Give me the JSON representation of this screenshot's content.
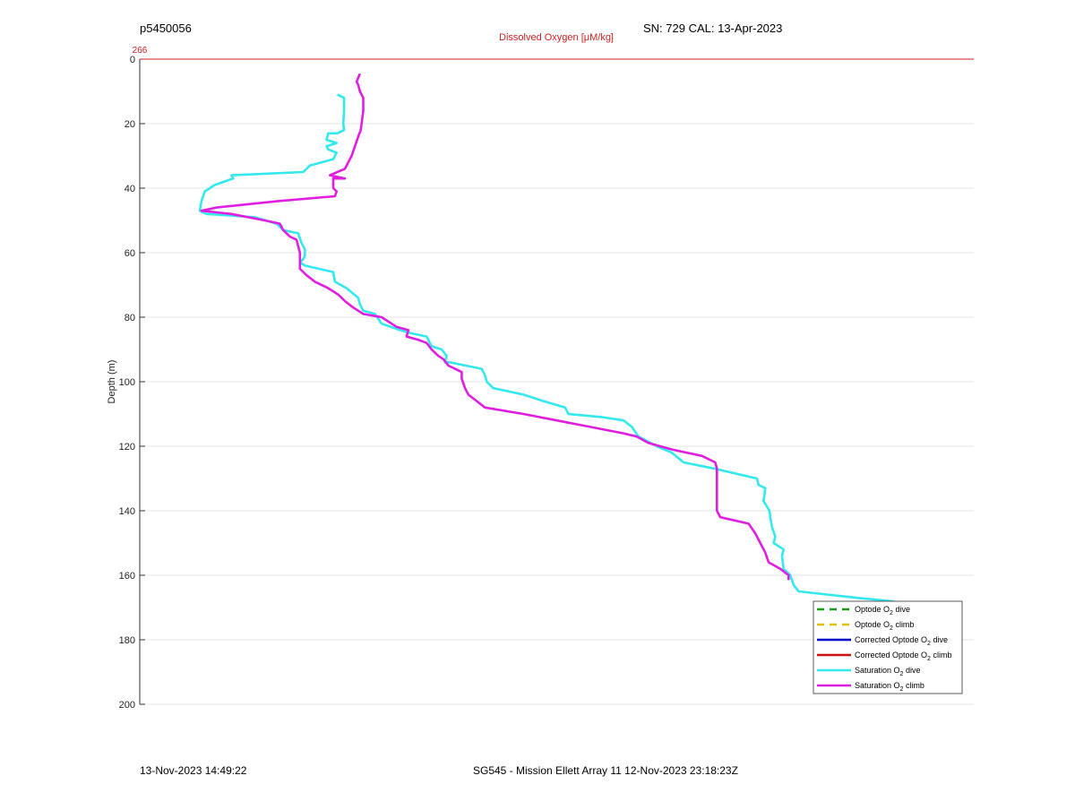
{
  "header": {
    "left": "p5450056",
    "right": "SN: 729  CAL: 13-Apr-2023"
  },
  "footer": {
    "left": "13-Nov-2023 14:49:22",
    "center": "SG545 - Mission Ellett Array 11 12-Nov-2023 23:18:23Z"
  },
  "chart_data": {
    "type": "line",
    "title": "",
    "top_axis_label": "Dissolved Oxygen [μM/kg]",
    "top_axis_ticks": [
      "266"
    ],
    "ylabel": "Depth (m)",
    "ylim": [
      0,
      200
    ],
    "y_reversed": true,
    "yticks": [
      0,
      20,
      40,
      60,
      80,
      100,
      120,
      140,
      160,
      180,
      200
    ],
    "grid": true,
    "legend_position": "bottom-right",
    "legend": [
      {
        "label": "Optode O",
        "sub": "2",
        "suffix": " dive",
        "color": "#1a9a1a",
        "dash": true
      },
      {
        "label": "Optode O",
        "sub": "2",
        "suffix": " climb",
        "color": "#e0c000",
        "dash": true
      },
      {
        "label": "Corrected Optode O",
        "sub": "2",
        "suffix": " dive",
        "color": "#0000cc",
        "dash": false
      },
      {
        "label": "Corrected Optode O",
        "sub": "2",
        "suffix": " climb",
        "color": "#cc1111",
        "dash": false
      },
      {
        "label": "Saturation O",
        "sub": "2",
        "suffix": " dive",
        "color": "#33e8ee",
        "dash": false
      },
      {
        "label": "Saturation O",
        "sub": "2",
        "suffix": " climb",
        "color": "#e01ee0",
        "dash": false
      }
    ],
    "x_note": "Series values are in relative units (0 = left edge, 1 = right edge of the plot area); the x axis carries no numeric tick labels.",
    "series": [
      {
        "name": "Saturation O2 dive",
        "color": "#33e8ee",
        "points": [
          [
            0.237,
            11
          ],
          [
            0.245,
            12
          ],
          [
            0.245,
            16
          ],
          [
            0.244,
            20
          ],
          [
            0.245,
            22
          ],
          [
            0.237,
            23
          ],
          [
            0.226,
            23
          ],
          [
            0.224,
            25
          ],
          [
            0.236,
            26
          ],
          [
            0.224,
            27
          ],
          [
            0.226,
            28
          ],
          [
            0.236,
            29
          ],
          [
            0.232,
            31
          ],
          [
            0.204,
            33
          ],
          [
            0.196,
            35
          ],
          [
            0.11,
            36
          ],
          [
            0.112,
            37
          ],
          [
            0.09,
            39
          ],
          [
            0.078,
            41
          ],
          [
            0.074,
            44
          ],
          [
            0.072,
            47
          ],
          [
            0.08,
            48
          ],
          [
            0.138,
            49
          ],
          [
            0.164,
            51
          ],
          [
            0.172,
            53
          ],
          [
            0.19,
            54
          ],
          [
            0.194,
            57
          ],
          [
            0.198,
            59
          ],
          [
            0.198,
            61
          ],
          [
            0.196,
            62
          ],
          [
            0.192,
            63
          ],
          [
            0.198,
            64
          ],
          [
            0.232,
            66
          ],
          [
            0.234,
            69
          ],
          [
            0.248,
            71
          ],
          [
            0.262,
            74
          ],
          [
            0.264,
            76
          ],
          [
            0.268,
            78
          ],
          [
            0.282,
            79
          ],
          [
            0.29,
            82
          ],
          [
            0.312,
            84
          ],
          [
            0.326,
            85
          ],
          [
            0.344,
            86
          ],
          [
            0.35,
            89
          ],
          [
            0.362,
            90
          ],
          [
            0.368,
            92
          ],
          [
            0.366,
            94
          ],
          [
            0.372,
            94
          ],
          [
            0.41,
            96
          ],
          [
            0.414,
            98
          ],
          [
            0.416,
            100
          ],
          [
            0.424,
            102
          ],
          [
            0.46,
            104
          ],
          [
            0.484,
            106
          ],
          [
            0.51,
            108
          ],
          [
            0.514,
            110
          ],
          [
            0.555,
            111
          ],
          [
            0.58,
            112
          ],
          [
            0.59,
            114
          ],
          [
            0.598,
            117
          ],
          [
            0.62,
            120
          ],
          [
            0.638,
            122
          ],
          [
            0.652,
            125
          ],
          [
            0.69,
            127
          ],
          [
            0.74,
            130
          ],
          [
            0.742,
            132
          ],
          [
            0.75,
            133
          ],
          [
            0.748,
            137
          ],
          [
            0.755,
            140
          ],
          [
            0.756,
            142
          ],
          [
            0.758,
            145
          ],
          [
            0.762,
            148
          ],
          [
            0.76,
            150
          ],
          [
            0.772,
            152
          ],
          [
            0.77,
            154
          ],
          [
            0.772,
            158
          ],
          [
            0.78,
            160
          ],
          [
            0.784,
            163
          ],
          [
            0.79,
            165
          ],
          [
            0.86,
            167
          ],
          [
            0.9,
            168
          ],
          [
            0.92,
            169
          ],
          [
            0.94,
            170
          ],
          [
            0.96,
            172
          ]
        ]
      },
      {
        "name": "Saturation O2 climb",
        "color": "#e01ee0",
        "points": [
          [
            0.264,
            4.5
          ],
          [
            0.26,
            7
          ],
          [
            0.262,
            8
          ],
          [
            0.264,
            10
          ],
          [
            0.268,
            12
          ],
          [
            0.268,
            16
          ],
          [
            0.266,
            20
          ],
          [
            0.265,
            22
          ],
          [
            0.262,
            24
          ],
          [
            0.258,
            27
          ],
          [
            0.254,
            30
          ],
          [
            0.25,
            32
          ],
          [
            0.246,
            34
          ],
          [
            0.228,
            36
          ],
          [
            0.246,
            37
          ],
          [
            0.232,
            37
          ],
          [
            0.232,
            40
          ],
          [
            0.236,
            41
          ],
          [
            0.234,
            42.5
          ],
          [
            0.166,
            44
          ],
          [
            0.092,
            46
          ],
          [
            0.074,
            47
          ],
          [
            0.11,
            48
          ],
          [
            0.15,
            50
          ],
          [
            0.168,
            51
          ],
          [
            0.172,
            53
          ],
          [
            0.18,
            55
          ],
          [
            0.188,
            56
          ],
          [
            0.19,
            58
          ],
          [
            0.192,
            60
          ],
          [
            0.192,
            63
          ],
          [
            0.192,
            65
          ],
          [
            0.2,
            67
          ],
          [
            0.21,
            69
          ],
          [
            0.226,
            71
          ],
          [
            0.238,
            73
          ],
          [
            0.246,
            75
          ],
          [
            0.256,
            77
          ],
          [
            0.268,
            79
          ],
          [
            0.29,
            80
          ],
          [
            0.308,
            83
          ],
          [
            0.322,
            84
          ],
          [
            0.32,
            86
          ],
          [
            0.334,
            87
          ],
          [
            0.344,
            88
          ],
          [
            0.35,
            90
          ],
          [
            0.358,
            92
          ],
          [
            0.364,
            93
          ],
          [
            0.37,
            95
          ],
          [
            0.386,
            97
          ],
          [
            0.386,
            99
          ],
          [
            0.39,
            102
          ],
          [
            0.394,
            104
          ],
          [
            0.404,
            106
          ],
          [
            0.414,
            108
          ],
          [
            0.46,
            110
          ],
          [
            0.5,
            112
          ],
          [
            0.54,
            114
          ],
          [
            0.58,
            116
          ],
          [
            0.596,
            117
          ],
          [
            0.61,
            119
          ],
          [
            0.638,
            121
          ],
          [
            0.674,
            123
          ],
          [
            0.69,
            125
          ],
          [
            0.692,
            127
          ],
          [
            0.692,
            130
          ],
          [
            0.692,
            135
          ],
          [
            0.692,
            140
          ],
          [
            0.696,
            142
          ],
          [
            0.73,
            144
          ],
          [
            0.738,
            147
          ],
          [
            0.744,
            150
          ],
          [
            0.75,
            153
          ],
          [
            0.754,
            156
          ],
          [
            0.768,
            158
          ],
          [
            0.778,
            160
          ],
          [
            0.778,
            161.5
          ]
        ]
      }
    ]
  }
}
